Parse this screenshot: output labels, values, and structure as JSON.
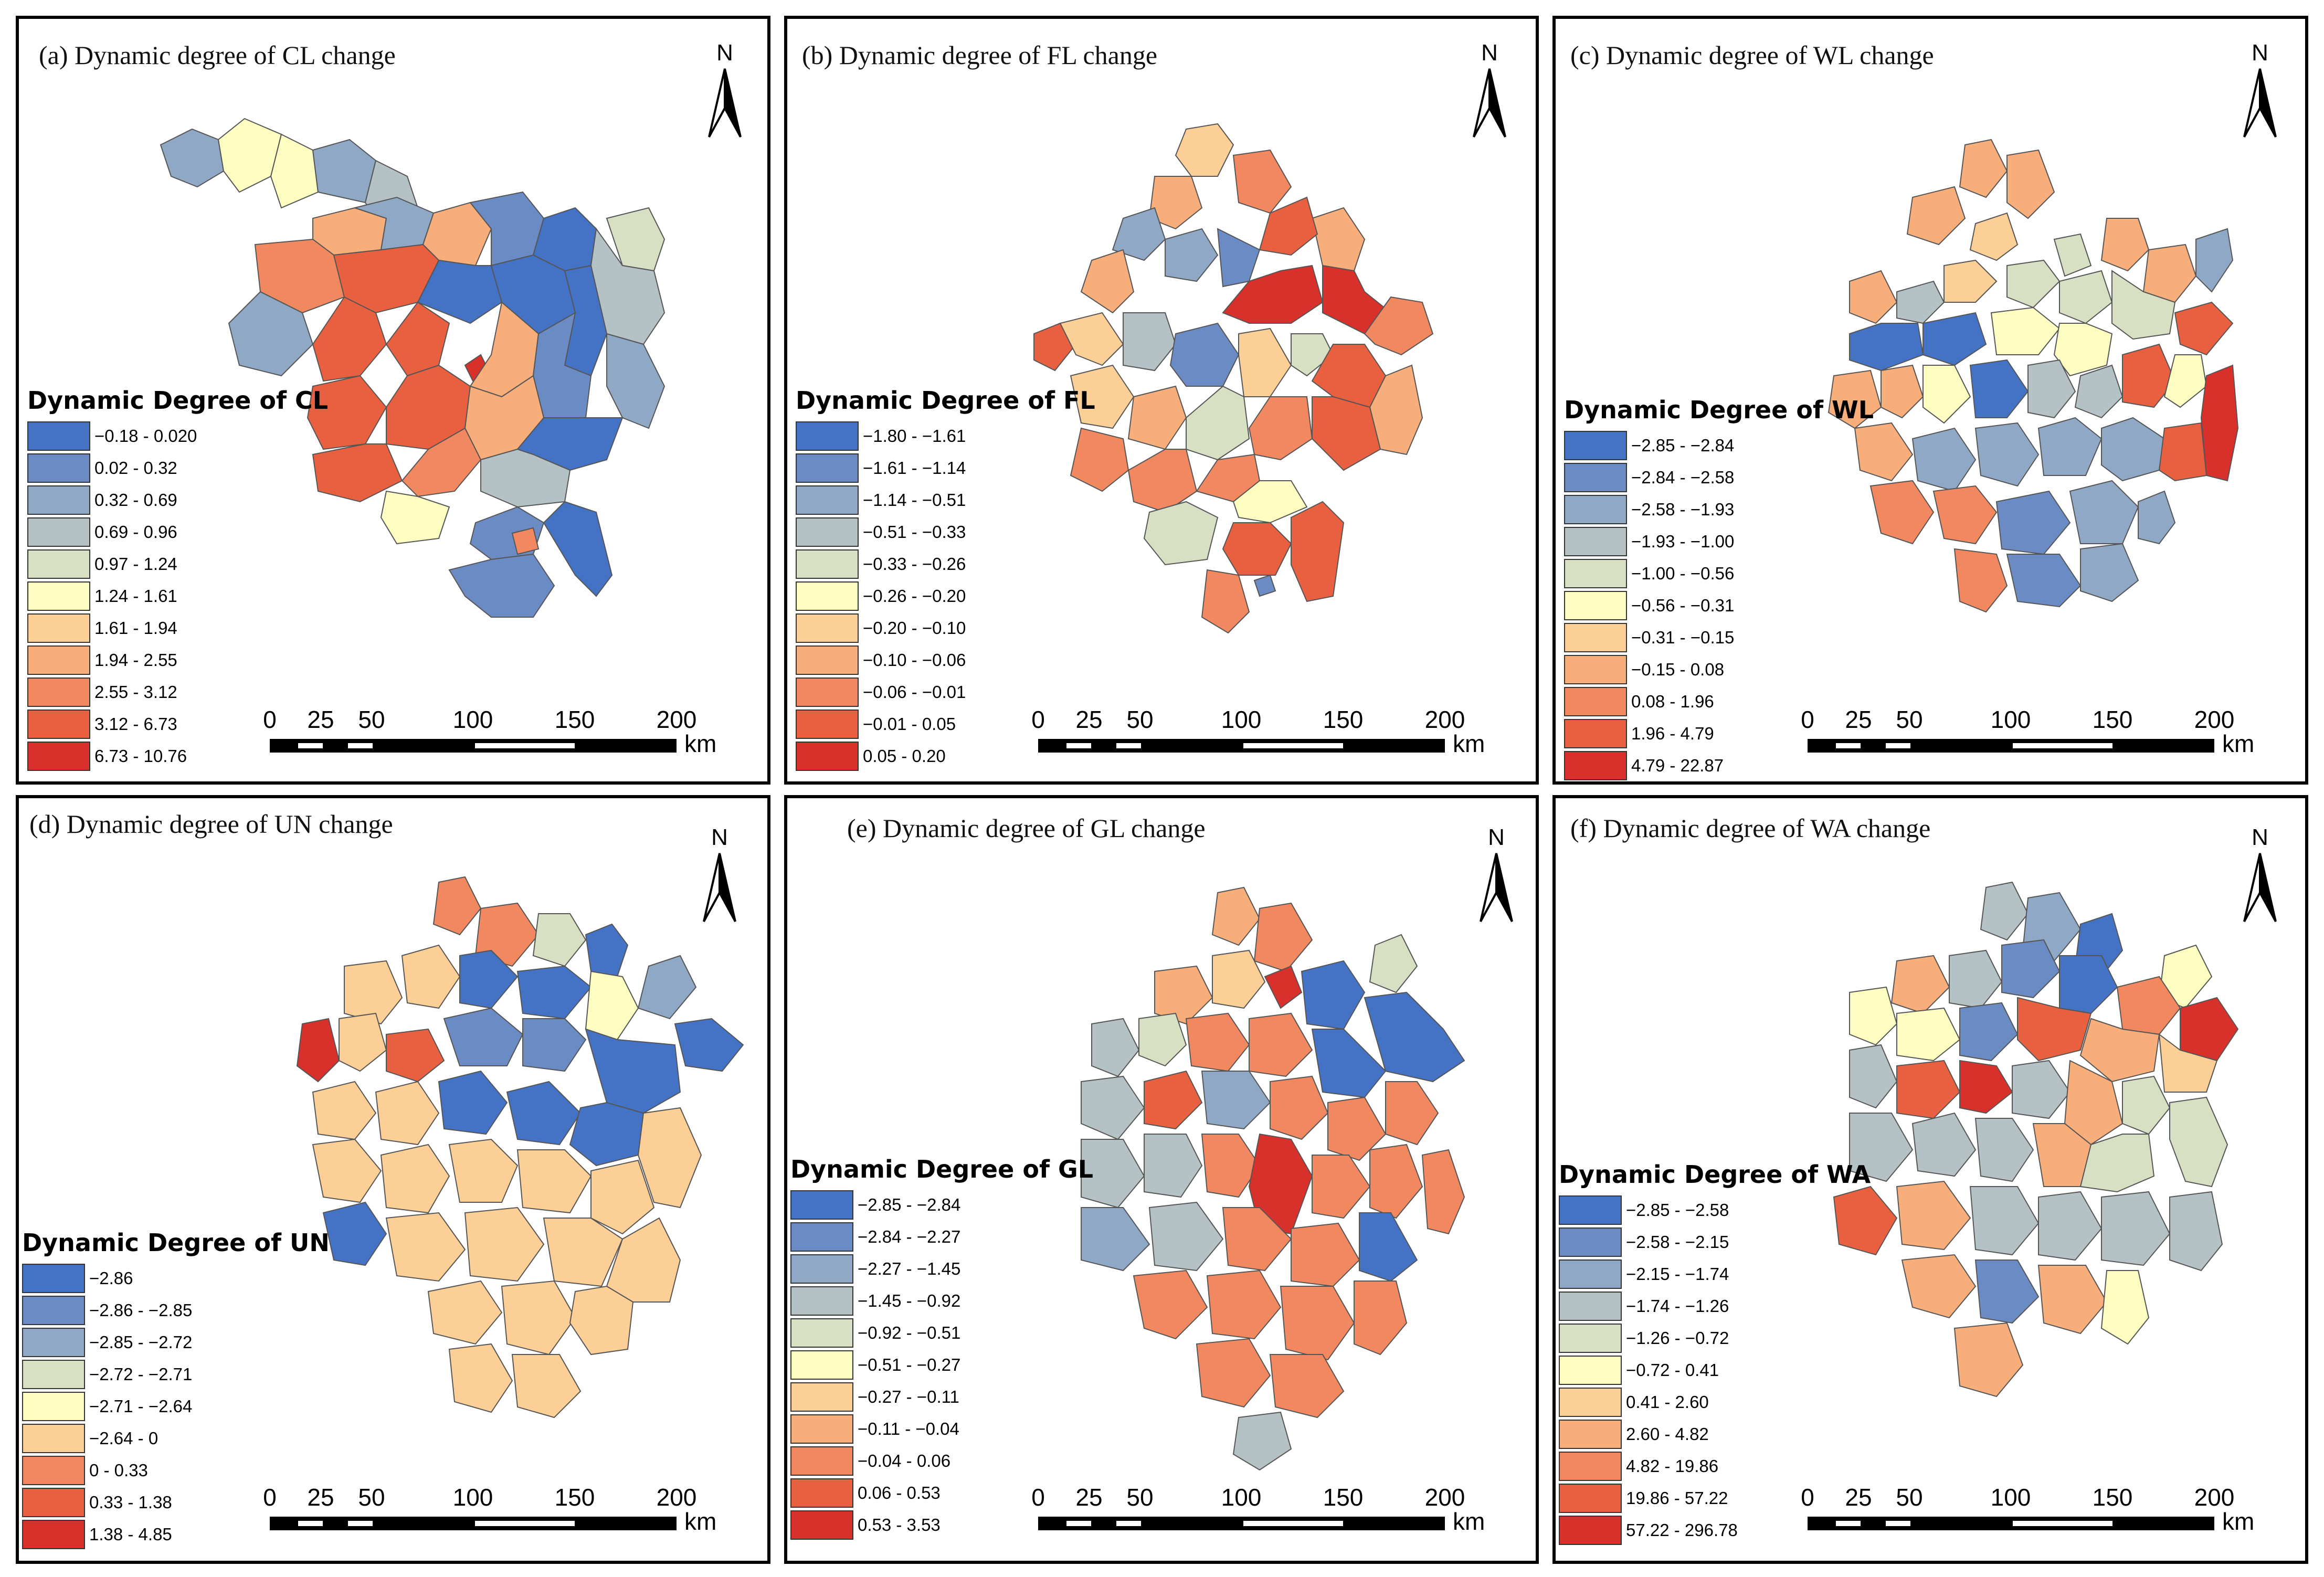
{
  "panels": [
    {
      "title": "(a) Dynamic degree of CL change",
      "legend_title": "Dynamic Degree of CL",
      "legend": [
        {
          "label": "−0.18 - 0.020",
          "color": "#4472c4"
        },
        {
          "label": "0.02 - 0.32",
          "color": "#6a8bc3"
        },
        {
          "label": "0.32 - 0.69",
          "color": "#8fa8c6"
        },
        {
          "label": "0.69 - 0.96",
          "color": "#b4c2c6"
        },
        {
          "label": "0.97 - 1.24",
          "color": "#d8e0c4"
        },
        {
          "label": "1.24 - 1.61",
          "color": "#fdfcc1"
        },
        {
          "label": "1.61 - 1.94",
          "color": "#fbcf96"
        },
        {
          "label": "1.94 - 2.55",
          "color": "#f8ae7a"
        },
        {
          "label": "2.55 - 3.12",
          "color": "#f28860"
        },
        {
          "label": "3.12 - 6.73",
          "color": "#e8603f"
        },
        {
          "label": "6.73 - 10.76",
          "color": "#d8302a"
        }
      ]
    },
    {
      "title": "(b) Dynamic degree of FL change",
      "legend_title": "Dynamic Degree of FL",
      "legend": [
        {
          "label": "−1.80 - −1.61",
          "color": "#4472c4"
        },
        {
          "label": "−1.61 - −1.14",
          "color": "#6a8bc3"
        },
        {
          "label": "−1.14 - −0.51",
          "color": "#8fa8c6"
        },
        {
          "label": "−0.51 - −0.33",
          "color": "#b4c2c6"
        },
        {
          "label": "−0.33 - −0.26",
          "color": "#d8e0c4"
        },
        {
          "label": "−0.26 - −0.20",
          "color": "#fdfcc1"
        },
        {
          "label": "−0.20 - −0.10",
          "color": "#fbcf96"
        },
        {
          "label": "−0.10 - −0.06",
          "color": "#f8ae7a"
        },
        {
          "label": "−0.06 - −0.01",
          "color": "#f28860"
        },
        {
          "label": "−0.01 - 0.05",
          "color": "#e8603f"
        },
        {
          "label": "0.05 - 0.20",
          "color": "#d8302a"
        }
      ]
    },
    {
      "title": "(c) Dynamic degree of WL change",
      "legend_title": "Dynamic Degree of WL",
      "legend": [
        {
          "label": "−2.85 - −2.84",
          "color": "#4472c4"
        },
        {
          "label": "−2.84 - −2.58",
          "color": "#6a8bc3"
        },
        {
          "label": "−2.58 - −1.93",
          "color": "#8fa8c6"
        },
        {
          "label": "−1.93 - −1.00",
          "color": "#b4c2c6"
        },
        {
          "label": "−1.00 - −0.56",
          "color": "#d8e0c4"
        },
        {
          "label": "−0.56 - −0.31",
          "color": "#fdfcc1"
        },
        {
          "label": "−0.31 - −0.15",
          "color": "#fbcf96"
        },
        {
          "label": "−0.15 - 0.08",
          "color": "#f8ae7a"
        },
        {
          "label": "0.08 - 1.96",
          "color": "#f28860"
        },
        {
          "label": "1.96 - 4.79",
          "color": "#e8603f"
        },
        {
          "label": "4.79 - 22.87",
          "color": "#d8302a"
        }
      ]
    },
    {
      "title": "(d) Dynamic degree of UN change",
      "legend_title": "Dynamic Degree of UN",
      "legend": [
        {
          "label": "−2.86",
          "color": "#4472c4"
        },
        {
          "label": "−2.86 - −2.85",
          "color": "#6a8bc3"
        },
        {
          "label": "−2.85 - −2.72",
          "color": "#8fa8c6"
        },
        {
          "label": "−2.72 - −2.71",
          "color": "#d8e0c4"
        },
        {
          "label": "−2.71 - −2.64",
          "color": "#fdfcc1"
        },
        {
          "label": "−2.64 - 0",
          "color": "#fbcf96"
        },
        {
          "label": "0 - 0.33",
          "color": "#f28860"
        },
        {
          "label": "0.33 - 1.38",
          "color": "#e8603f"
        },
        {
          "label": "1.38 - 4.85",
          "color": "#d8302a"
        }
      ]
    },
    {
      "title": "(e) Dynamic degree of GL change",
      "legend_title": "Dynamic Degree of GL",
      "legend": [
        {
          "label": "−2.85 - −2.84",
          "color": "#4472c4"
        },
        {
          "label": "−2.84 - −2.27",
          "color": "#6a8bc3"
        },
        {
          "label": "−2.27 - −1.45",
          "color": "#8fa8c6"
        },
        {
          "label": "−1.45 - −0.92",
          "color": "#b4c2c6"
        },
        {
          "label": "−0.92 - −0.51",
          "color": "#d8e0c4"
        },
        {
          "label": "−0.51 - −0.27",
          "color": "#fdfcc1"
        },
        {
          "label": "−0.27 - −0.11",
          "color": "#fbcf96"
        },
        {
          "label": "−0.11 - −0.04",
          "color": "#f8ae7a"
        },
        {
          "label": "−0.04 - 0.06",
          "color": "#f28860"
        },
        {
          "label": "0.06 - 0.53",
          "color": "#e8603f"
        },
        {
          "label": "0.53 - 3.53",
          "color": "#d8302a"
        }
      ]
    },
    {
      "title": "(f) Dynamic degree of WA change",
      "legend_title": "Dynamic Degree of WA",
      "legend": [
        {
          "label": "−2.85 - −2.58",
          "color": "#4472c4"
        },
        {
          "label": "−2.58 - −2.15",
          "color": "#6a8bc3"
        },
        {
          "label": "−2.15 - −1.74",
          "color": "#8fa8c6"
        },
        {
          "label": "−1.74 - −1.26",
          "color": "#b4c2c6"
        },
        {
          "label": "−1.26 - −0.72",
          "color": "#d8e0c4"
        },
        {
          "label": "−0.72 - 0.41",
          "color": "#fdfcc1"
        },
        {
          "label": "0.41 - 2.60",
          "color": "#fbcf96"
        },
        {
          "label": "2.60 - 4.82",
          "color": "#f8ae7a"
        },
        {
          "label": "4.82 - 19.86",
          "color": "#f28860"
        },
        {
          "label": "19.86 - 57.22",
          "color": "#e8603f"
        },
        {
          "label": "57.22 - 296.78",
          "color": "#d8302a"
        }
      ]
    }
  ],
  "north_arrow": {
    "letter": "N"
  },
  "scale_bar": {
    "ticks": [
      "0",
      "25",
      "50",
      "100",
      "150",
      "200"
    ],
    "unit": "km"
  }
}
